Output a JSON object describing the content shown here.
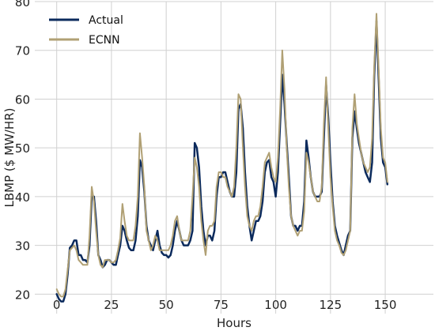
{
  "chart_data": {
    "type": "line",
    "title": "",
    "xlabel": "Hours",
    "ylabel": "LBMP ($ MW/HR)",
    "xlim": [
      -10,
      172
    ],
    "ylim": [
      16,
      80
    ],
    "x_ticks": [
      0,
      25,
      50,
      75,
      100,
      125,
      150
    ],
    "y_ticks": [
      20,
      30,
      40,
      50,
      60,
      70,
      80
    ],
    "grid": true,
    "legend_position": "top-left",
    "series": [
      {
        "name": "Actual",
        "color": "#0b2a5c",
        "points": [
          [
            0,
            20
          ],
          [
            1,
            19
          ],
          [
            2,
            18.5
          ],
          [
            3,
            18.5
          ],
          [
            4,
            20
          ],
          [
            5,
            24
          ],
          [
            6,
            29.5
          ],
          [
            7,
            30
          ],
          [
            8,
            31
          ],
          [
            9,
            31
          ],
          [
            10,
            28
          ],
          [
            11,
            28
          ],
          [
            12,
            27
          ],
          [
            13,
            27
          ],
          [
            14,
            26.5
          ],
          [
            15,
            30
          ],
          [
            16,
            40
          ],
          [
            17,
            40
          ],
          [
            18,
            35
          ],
          [
            19,
            28
          ],
          [
            20,
            27
          ],
          [
            21,
            25.5
          ],
          [
            22,
            26
          ],
          [
            23,
            27
          ],
          [
            24,
            27
          ],
          [
            25,
            26.5
          ],
          [
            26,
            26
          ],
          [
            27,
            26
          ],
          [
            28,
            28
          ],
          [
            29,
            30
          ],
          [
            30,
            34
          ],
          [
            31,
            33
          ],
          [
            32,
            31
          ],
          [
            33,
            29.5
          ],
          [
            34,
            29
          ],
          [
            35,
            29
          ],
          [
            36,
            31
          ],
          [
            37,
            36
          ],
          [
            38,
            47.5
          ],
          [
            39,
            46
          ],
          [
            40,
            41
          ],
          [
            41,
            34
          ],
          [
            42,
            31
          ],
          [
            43,
            30
          ],
          [
            44,
            29
          ],
          [
            45,
            31
          ],
          [
            46,
            33
          ],
          [
            47,
            30
          ],
          [
            48,
            28.5
          ],
          [
            49,
            28
          ],
          [
            50,
            28
          ],
          [
            51,
            27.5
          ],
          [
            52,
            28
          ],
          [
            53,
            30
          ],
          [
            54,
            33
          ],
          [
            55,
            35
          ],
          [
            56,
            33
          ],
          [
            57,
            31
          ],
          [
            58,
            30
          ],
          [
            59,
            30
          ],
          [
            60,
            30
          ],
          [
            61,
            31
          ],
          [
            62,
            33
          ],
          [
            63,
            51
          ],
          [
            64,
            50
          ],
          [
            65,
            46
          ],
          [
            66,
            38
          ],
          [
            67,
            33
          ],
          [
            68,
            30
          ],
          [
            69,
            32
          ],
          [
            70,
            32
          ],
          [
            71,
            31
          ],
          [
            72,
            33
          ],
          [
            73,
            40
          ],
          [
            74,
            44
          ],
          [
            75,
            44
          ],
          [
            76,
            45
          ],
          [
            77,
            45
          ],
          [
            78,
            43
          ],
          [
            79,
            41
          ],
          [
            80,
            40
          ],
          [
            81,
            40
          ],
          [
            82,
            45
          ],
          [
            83,
            58
          ],
          [
            84,
            59
          ],
          [
            85,
            54
          ],
          [
            86,
            45
          ],
          [
            87,
            38
          ],
          [
            88,
            34
          ],
          [
            89,
            31
          ],
          [
            90,
            33
          ],
          [
            91,
            35
          ],
          [
            92,
            35
          ],
          [
            93,
            36
          ],
          [
            94,
            39
          ],
          [
            95,
            45
          ],
          [
            96,
            47
          ],
          [
            97,
            47.5
          ],
          [
            98,
            44
          ],
          [
            99,
            43
          ],
          [
            100,
            40
          ],
          [
            101,
            45
          ],
          [
            102,
            55
          ],
          [
            103,
            65
          ],
          [
            104,
            59
          ],
          [
            105,
            51
          ],
          [
            106,
            44
          ],
          [
            107,
            36
          ],
          [
            108,
            34
          ],
          [
            109,
            34
          ],
          [
            110,
            33
          ],
          [
            111,
            34
          ],
          [
            112,
            34
          ],
          [
            113,
            39
          ],
          [
            114,
            51.5
          ],
          [
            115,
            48
          ],
          [
            116,
            44
          ],
          [
            117,
            41
          ],
          [
            118,
            40
          ],
          [
            119,
            40
          ],
          [
            120,
            40
          ],
          [
            121,
            41
          ],
          [
            122,
            52
          ],
          [
            123,
            63
          ],
          [
            124,
            56
          ],
          [
            125,
            47
          ],
          [
            126,
            39
          ],
          [
            127,
            34
          ],
          [
            128,
            32
          ],
          [
            129,
            30.5
          ],
          [
            130,
            29
          ],
          [
            131,
            28
          ],
          [
            132,
            30
          ],
          [
            133,
            32
          ],
          [
            134,
            33
          ],
          [
            135,
            52
          ],
          [
            136,
            57.5
          ],
          [
            137,
            54
          ],
          [
            138,
            51
          ],
          [
            139,
            49
          ],
          [
            140,
            47
          ],
          [
            141,
            45
          ],
          [
            142,
            44
          ],
          [
            143,
            43
          ],
          [
            144,
            47
          ],
          [
            145,
            65
          ],
          [
            146,
            76
          ],
          [
            147,
            64
          ],
          [
            148,
            52
          ],
          [
            149,
            47
          ],
          [
            150,
            46
          ],
          [
            151,
            42.5
          ]
        ]
      },
      {
        "name": "ECNN",
        "color": "#b0a074",
        "points": [
          [
            0,
            21
          ],
          [
            1,
            20
          ],
          [
            2,
            19.5
          ],
          [
            3,
            19.5
          ],
          [
            4,
            21
          ],
          [
            5,
            25
          ],
          [
            6,
            29
          ],
          [
            7,
            29.5
          ],
          [
            8,
            30
          ],
          [
            9,
            29
          ],
          [
            10,
            27
          ],
          [
            11,
            26.5
          ],
          [
            12,
            26
          ],
          [
            13,
            26
          ],
          [
            14,
            26
          ],
          [
            15,
            32
          ],
          [
            16,
            42
          ],
          [
            17,
            39
          ],
          [
            18,
            33
          ],
          [
            19,
            28
          ],
          [
            20,
            26
          ],
          [
            21,
            25.5
          ],
          [
            22,
            27
          ],
          [
            23,
            27
          ],
          [
            24,
            27
          ],
          [
            25,
            26.5
          ],
          [
            26,
            26.5
          ],
          [
            27,
            27
          ],
          [
            28,
            29
          ],
          [
            29,
            31.5
          ],
          [
            30,
            38.5
          ],
          [
            31,
            35
          ],
          [
            32,
            32
          ],
          [
            33,
            31
          ],
          [
            34,
            31
          ],
          [
            35,
            31
          ],
          [
            36,
            34
          ],
          [
            37,
            40
          ],
          [
            38,
            53
          ],
          [
            39,
            48
          ],
          [
            40,
            42
          ],
          [
            41,
            33
          ],
          [
            42,
            31
          ],
          [
            43,
            29
          ],
          [
            44,
            30
          ],
          [
            45,
            32
          ],
          [
            46,
            31
          ],
          [
            47,
            29
          ],
          [
            48,
            29
          ],
          [
            49,
            29
          ],
          [
            50,
            29
          ],
          [
            51,
            29
          ],
          [
            52,
            30
          ],
          [
            53,
            32
          ],
          [
            54,
            35
          ],
          [
            55,
            36
          ],
          [
            56,
            33
          ],
          [
            57,
            31
          ],
          [
            58,
            31
          ],
          [
            59,
            31
          ],
          [
            60,
            31
          ],
          [
            61,
            33
          ],
          [
            62,
            40
          ],
          [
            63,
            48
          ],
          [
            64,
            46
          ],
          [
            65,
            42
          ],
          [
            66,
            35
          ],
          [
            67,
            31
          ],
          [
            68,
            28
          ],
          [
            69,
            33
          ],
          [
            70,
            34
          ],
          [
            71,
            34
          ],
          [
            72,
            35
          ],
          [
            73,
            42
          ],
          [
            74,
            45
          ],
          [
            75,
            45
          ],
          [
            76,
            44
          ],
          [
            77,
            44
          ],
          [
            78,
            42
          ],
          [
            79,
            41
          ],
          [
            80,
            40
          ],
          [
            81,
            42
          ],
          [
            82,
            50
          ],
          [
            83,
            61
          ],
          [
            84,
            60
          ],
          [
            85,
            50
          ],
          [
            86,
            42
          ],
          [
            87,
            36
          ],
          [
            88,
            34
          ],
          [
            89,
            33
          ],
          [
            90,
            35
          ],
          [
            91,
            36
          ],
          [
            92,
            36
          ],
          [
            93,
            38
          ],
          [
            94,
            42
          ],
          [
            95,
            47
          ],
          [
            96,
            48
          ],
          [
            97,
            49
          ],
          [
            98,
            46
          ],
          [
            99,
            44
          ],
          [
            100,
            43
          ],
          [
            101,
            48
          ],
          [
            102,
            58
          ],
          [
            103,
            70
          ],
          [
            104,
            62
          ],
          [
            105,
            50
          ],
          [
            106,
            42
          ],
          [
            107,
            36
          ],
          [
            108,
            34
          ],
          [
            109,
            33
          ],
          [
            110,
            32
          ],
          [
            111,
            33
          ],
          [
            112,
            33
          ],
          [
            113,
            37
          ],
          [
            114,
            49
          ],
          [
            115,
            47
          ],
          [
            116,
            44
          ],
          [
            117,
            41
          ],
          [
            118,
            40
          ],
          [
            119,
            39
          ],
          [
            120,
            39
          ],
          [
            121,
            42
          ],
          [
            122,
            55
          ],
          [
            123,
            64.5
          ],
          [
            124,
            54
          ],
          [
            125,
            44
          ],
          [
            126,
            38
          ],
          [
            127,
            33
          ],
          [
            128,
            31
          ],
          [
            129,
            30
          ],
          [
            130,
            28.5
          ],
          [
            131,
            28
          ],
          [
            132,
            29
          ],
          [
            133,
            31
          ],
          [
            134,
            33
          ],
          [
            135,
            54
          ],
          [
            136,
            61
          ],
          [
            137,
            55
          ],
          [
            138,
            52
          ],
          [
            139,
            49
          ],
          [
            140,
            47
          ],
          [
            141,
            46
          ],
          [
            142,
            45
          ],
          [
            143,
            46
          ],
          [
            144,
            52
          ],
          [
            145,
            67
          ],
          [
            146,
            77.5
          ],
          [
            147,
            66
          ],
          [
            148,
            54
          ],
          [
            149,
            48
          ],
          [
            150,
            47
          ],
          [
            151,
            43
          ]
        ]
      }
    ]
  }
}
